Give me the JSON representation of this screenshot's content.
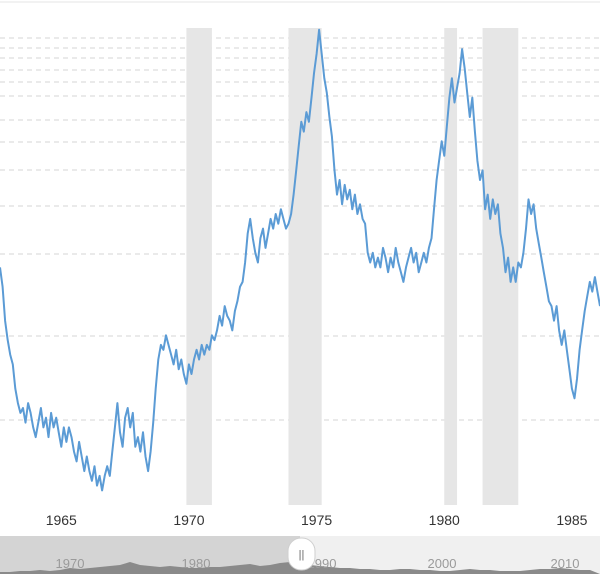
{
  "chart_data": {
    "type": "line",
    "title": "",
    "xlabel": "",
    "ylabel": "",
    "xlim": [
      1962.6,
      1986.1
    ],
    "ylim": [
      0,
      100
    ],
    "grid": true,
    "x_ticks": [
      "1965",
      "1970",
      "1975",
      "1980",
      "1985"
    ],
    "recessions": [
      {
        "start": 1969.9,
        "end": 1970.9
      },
      {
        "start": 1973.9,
        "end": 1975.2
      },
      {
        "start": 1980.0,
        "end": 1980.5
      },
      {
        "start": 1981.5,
        "end": 1982.9
      }
    ],
    "series": [
      {
        "color": "#5b9bd5",
        "points": [
          [
            1962.6,
            49
          ],
          [
            1962.7,
            45
          ],
          [
            1962.8,
            38
          ],
          [
            1962.9,
            34
          ],
          [
            1963.0,
            31
          ],
          [
            1963.1,
            29
          ],
          [
            1963.2,
            24
          ],
          [
            1963.3,
            21
          ],
          [
            1963.4,
            19
          ],
          [
            1963.5,
            20
          ],
          [
            1963.6,
            17
          ],
          [
            1963.7,
            21
          ],
          [
            1963.8,
            19
          ],
          [
            1963.9,
            16
          ],
          [
            1964.0,
            14
          ],
          [
            1964.1,
            17
          ],
          [
            1964.2,
            20
          ],
          [
            1964.3,
            16
          ],
          [
            1964.4,
            18
          ],
          [
            1964.5,
            14
          ],
          [
            1964.6,
            19
          ],
          [
            1964.7,
            16
          ],
          [
            1964.8,
            18
          ],
          [
            1964.9,
            15
          ],
          [
            1965.0,
            12
          ],
          [
            1965.1,
            16
          ],
          [
            1965.2,
            13
          ],
          [
            1965.3,
            16
          ],
          [
            1965.4,
            14
          ],
          [
            1965.5,
            11
          ],
          [
            1965.6,
            9
          ],
          [
            1965.7,
            13
          ],
          [
            1965.8,
            10
          ],
          [
            1965.9,
            7
          ],
          [
            1966.0,
            10
          ],
          [
            1966.1,
            7
          ],
          [
            1966.2,
            5
          ],
          [
            1966.3,
            8
          ],
          [
            1966.4,
            4
          ],
          [
            1966.5,
            6
          ],
          [
            1966.6,
            3
          ],
          [
            1966.7,
            6
          ],
          [
            1966.8,
            8
          ],
          [
            1966.9,
            6
          ],
          [
            1967.0,
            11
          ],
          [
            1967.1,
            16
          ],
          [
            1967.2,
            21
          ],
          [
            1967.3,
            15
          ],
          [
            1967.4,
            12
          ],
          [
            1967.5,
            18
          ],
          [
            1967.6,
            20
          ],
          [
            1967.7,
            16
          ],
          [
            1967.8,
            19
          ],
          [
            1967.9,
            12
          ],
          [
            1968.0,
            14
          ],
          [
            1968.1,
            11
          ],
          [
            1968.2,
            15
          ],
          [
            1968.3,
            10
          ],
          [
            1968.4,
            7
          ],
          [
            1968.5,
            11
          ],
          [
            1968.6,
            17
          ],
          [
            1968.7,
            24
          ],
          [
            1968.8,
            30
          ],
          [
            1968.9,
            33
          ],
          [
            1969.0,
            32
          ],
          [
            1969.1,
            35
          ],
          [
            1969.2,
            33
          ],
          [
            1969.3,
            31
          ],
          [
            1969.4,
            29
          ],
          [
            1969.5,
            32
          ],
          [
            1969.6,
            28
          ],
          [
            1969.7,
            30
          ],
          [
            1969.8,
            27
          ],
          [
            1969.9,
            25
          ],
          [
            1970.0,
            29
          ],
          [
            1970.1,
            27
          ],
          [
            1970.2,
            30
          ],
          [
            1970.3,
            32
          ],
          [
            1970.4,
            30
          ],
          [
            1970.5,
            33
          ],
          [
            1970.6,
            31
          ],
          [
            1970.7,
            33
          ],
          [
            1970.8,
            32
          ],
          [
            1970.9,
            35
          ],
          [
            1971.0,
            34
          ],
          [
            1971.1,
            36
          ],
          [
            1971.2,
            39
          ],
          [
            1971.3,
            37
          ],
          [
            1971.4,
            41
          ],
          [
            1971.5,
            39
          ],
          [
            1971.6,
            38
          ],
          [
            1971.7,
            36
          ],
          [
            1971.8,
            40
          ],
          [
            1971.9,
            42
          ],
          [
            1972.0,
            45
          ],
          [
            1972.1,
            46
          ],
          [
            1972.2,
            50
          ],
          [
            1972.3,
            56
          ],
          [
            1972.4,
            59
          ],
          [
            1972.5,
            55
          ],
          [
            1972.6,
            52
          ],
          [
            1972.7,
            50
          ],
          [
            1972.8,
            55
          ],
          [
            1972.9,
            57
          ],
          [
            1973.0,
            53
          ],
          [
            1973.1,
            56
          ],
          [
            1973.2,
            59
          ],
          [
            1973.3,
            57
          ],
          [
            1973.4,
            60
          ],
          [
            1973.5,
            58
          ],
          [
            1973.6,
            61
          ],
          [
            1973.7,
            59
          ],
          [
            1973.8,
            57
          ],
          [
            1973.9,
            58
          ],
          [
            1974.0,
            60
          ],
          [
            1974.1,
            64
          ],
          [
            1974.2,
            69
          ],
          [
            1974.3,
            74
          ],
          [
            1974.4,
            79
          ],
          [
            1974.5,
            77
          ],
          [
            1974.6,
            81
          ],
          [
            1974.7,
            79
          ],
          [
            1974.8,
            84
          ],
          [
            1974.9,
            89
          ],
          [
            1975.0,
            93
          ],
          [
            1975.1,
            98
          ],
          [
            1975.2,
            93
          ],
          [
            1975.3,
            88
          ],
          [
            1975.4,
            85
          ],
          [
            1975.5,
            80
          ],
          [
            1975.6,
            76
          ],
          [
            1975.7,
            69
          ],
          [
            1975.8,
            64
          ],
          [
            1975.9,
            67
          ],
          [
            1976.0,
            62
          ],
          [
            1976.1,
            66
          ],
          [
            1976.2,
            63
          ],
          [
            1976.3,
            65
          ],
          [
            1976.4,
            61
          ],
          [
            1976.5,
            64
          ],
          [
            1976.6,
            60
          ],
          [
            1976.7,
            62
          ],
          [
            1976.8,
            59
          ],
          [
            1976.9,
            58
          ],
          [
            1977.0,
            52
          ],
          [
            1977.1,
            50
          ],
          [
            1977.2,
            52
          ],
          [
            1977.3,
            49
          ],
          [
            1977.4,
            51
          ],
          [
            1977.5,
            49
          ],
          [
            1977.6,
            53
          ],
          [
            1977.7,
            51
          ],
          [
            1977.8,
            48
          ],
          [
            1977.9,
            51
          ],
          [
            1978.0,
            49
          ],
          [
            1978.1,
            53
          ],
          [
            1978.2,
            50
          ],
          [
            1978.3,
            48
          ],
          [
            1978.4,
            46
          ],
          [
            1978.5,
            49
          ],
          [
            1978.6,
            51
          ],
          [
            1978.7,
            53
          ],
          [
            1978.8,
            50
          ],
          [
            1978.9,
            52
          ],
          [
            1979.0,
            48
          ],
          [
            1979.1,
            50
          ],
          [
            1979.2,
            52
          ],
          [
            1979.3,
            50
          ],
          [
            1979.4,
            53
          ],
          [
            1979.5,
            55
          ],
          [
            1979.6,
            61
          ],
          [
            1979.7,
            67
          ],
          [
            1979.8,
            71
          ],
          [
            1979.9,
            75
          ],
          [
            1980.0,
            72
          ],
          [
            1980.1,
            78
          ],
          [
            1980.2,
            84
          ],
          [
            1980.3,
            88
          ],
          [
            1980.4,
            83
          ],
          [
            1980.5,
            86
          ],
          [
            1980.6,
            89
          ],
          [
            1980.7,
            94
          ],
          [
            1980.8,
            90
          ],
          [
            1980.9,
            85
          ],
          [
            1981.0,
            80
          ],
          [
            1981.1,
            84
          ],
          [
            1981.2,
            77
          ],
          [
            1981.3,
            71
          ],
          [
            1981.4,
            67
          ],
          [
            1981.5,
            69
          ],
          [
            1981.6,
            61
          ],
          [
            1981.7,
            64
          ],
          [
            1981.8,
            59
          ],
          [
            1981.9,
            63
          ],
          [
            1982.0,
            60
          ],
          [
            1982.1,
            62
          ],
          [
            1982.2,
            56
          ],
          [
            1982.3,
            53
          ],
          [
            1982.4,
            48
          ],
          [
            1982.5,
            51
          ],
          [
            1982.6,
            46
          ],
          [
            1982.7,
            49
          ],
          [
            1982.8,
            46
          ],
          [
            1982.9,
            50
          ],
          [
            1983.0,
            49
          ],
          [
            1983.1,
            52
          ],
          [
            1983.2,
            57
          ],
          [
            1983.3,
            63
          ],
          [
            1983.4,
            60
          ],
          [
            1983.5,
            62
          ],
          [
            1983.6,
            57
          ],
          [
            1983.7,
            54
          ],
          [
            1983.8,
            51
          ],
          [
            1983.9,
            48
          ],
          [
            1984.0,
            45
          ],
          [
            1984.1,
            42
          ],
          [
            1984.2,
            41
          ],
          [
            1984.3,
            38
          ],
          [
            1984.4,
            41
          ],
          [
            1984.5,
            36
          ],
          [
            1984.6,
            33
          ],
          [
            1984.7,
            36
          ],
          [
            1984.8,
            32
          ],
          [
            1984.9,
            28
          ],
          [
            1985.0,
            24
          ],
          [
            1985.1,
            22
          ],
          [
            1985.2,
            26
          ],
          [
            1985.3,
            32
          ],
          [
            1985.4,
            36
          ],
          [
            1985.5,
            40
          ],
          [
            1985.6,
            43
          ],
          [
            1985.7,
            46
          ],
          [
            1985.8,
            44
          ],
          [
            1985.9,
            47
          ],
          [
            1986.0,
            44
          ],
          [
            1986.1,
            41
          ]
        ]
      }
    ]
  },
  "navigator": {
    "years": [
      "1970",
      "1980",
      "1990",
      "2000",
      "2010"
    ],
    "handle_symbol": "||"
  }
}
